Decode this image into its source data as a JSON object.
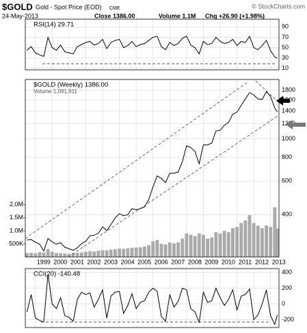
{
  "header": {
    "title": "$GOLD",
    "subtitle": "Gold - Spot Price (EOD)",
    "exchange": "CME",
    "source": "© StockCharts.com",
    "date": "24-May-2013",
    "close": "Close 1386.00",
    "volume": "Volume 1.1M",
    "change": "Chg +26.90 (+1.98%)"
  },
  "chart_data": [
    {
      "type": "line",
      "title": "RSI(14) 29.71",
      "color": "#000000",
      "grid": true,
      "x": [
        1998.5,
        1998.75,
        1999,
        1999.25,
        1999.5,
        1999.75,
        2000,
        2000.25,
        2000.5,
        2000.75,
        2001,
        2001.25,
        2001.5,
        2001.75,
        2002,
        2002.25,
        2002.5,
        2002.75,
        2003,
        2003.25,
        2003.5,
        2003.75,
        2004,
        2004.25,
        2004.5,
        2004.75,
        2005,
        2005.25,
        2005.5,
        2005.75,
        2006,
        2006.25,
        2006.5,
        2006.75,
        2007,
        2007.25,
        2007.5,
        2007.75,
        2008,
        2008.25,
        2008.5,
        2008.75,
        2009,
        2009.25,
        2009.5,
        2009.75,
        2010,
        2010.25,
        2010.5,
        2010.75,
        2011,
        2011.25,
        2011.5,
        2011.75,
        2012,
        2012.25,
        2012.5,
        2012.75,
        2013,
        2013.25,
        2013.4
      ],
      "values": [
        45,
        52,
        40,
        36,
        33,
        70,
        50,
        45,
        55,
        42,
        40,
        38,
        52,
        56,
        60,
        62,
        55,
        58,
        66,
        48,
        60,
        64,
        66,
        50,
        54,
        62,
        52,
        56,
        58,
        64,
        70,
        72,
        52,
        46,
        60,
        54,
        58,
        68,
        72,
        55,
        50,
        38,
        62,
        56,
        58,
        70,
        62,
        58,
        60,
        66,
        54,
        62,
        60,
        72,
        50,
        46,
        54,
        64,
        44,
        32,
        29.71
      ],
      "xlim": [
        1998.4,
        2013.5
      ],
      "ylim": [
        7,
        105
      ],
      "yticks": [
        10,
        30,
        50,
        70,
        90
      ]
    },
    {
      "type": "line",
      "title": "$GOLD (Weekly) 1386.00",
      "subtitle": "Volume 1,091,911",
      "log_scale": true,
      "grid": true,
      "x": [
        1998.5,
        1998.75,
        1999,
        1999.25,
        1999.5,
        1999.75,
        2000,
        2000.25,
        2000.5,
        2000.75,
        2001,
        2001.25,
        2001.5,
        2001.75,
        2002,
        2002.25,
        2002.5,
        2002.75,
        2003,
        2003.25,
        2003.5,
        2003.75,
        2004,
        2004.25,
        2004.5,
        2004.75,
        2005,
        2005.25,
        2005.5,
        2005.75,
        2006,
        2006.25,
        2006.5,
        2006.75,
        2007,
        2007.25,
        2007.5,
        2007.75,
        2008,
        2008.25,
        2008.5,
        2008.75,
        2009,
        2009.25,
        2009.5,
        2009.75,
        2010,
        2010.25,
        2010.5,
        2010.75,
        2011,
        2011.25,
        2011.5,
        2011.75,
        2012,
        2012.25,
        2012.5,
        2012.75,
        2013,
        2013.25,
        2013.4
      ],
      "series": [
        {
          "type": "bar",
          "axis": "y2",
          "color": "#aaaaaa",
          "values": [
            150000,
            160000,
            140000,
            180000,
            170000,
            300000,
            200000,
            150000,
            140000,
            130000,
            120000,
            150000,
            160000,
            170000,
            200000,
            220000,
            210000,
            240000,
            260000,
            250000,
            280000,
            300000,
            320000,
            310000,
            330000,
            350000,
            360000,
            370000,
            400000,
            450000,
            600000,
            650000,
            500000,
            480000,
            550000,
            520000,
            560000,
            700000,
            900000,
            850000,
            800000,
            900000,
            850000,
            700000,
            750000,
            950000,
            900000,
            1000000,
            950000,
            1100000,
            1150000,
            1300000,
            1400000,
            1600000,
            1300000,
            1200000,
            1100000,
            1200000,
            1150000,
            1900000,
            1091911
          ]
        },
        {
          "type": "line",
          "color": "#000000",
          "values": [
            295,
            296,
            287,
            280,
            258,
            300,
            288,
            280,
            285,
            270,
            265,
            260,
            268,
            282,
            290,
            310,
            312,
            320,
            345,
            330,
            355,
            385,
            405,
            395,
            400,
            430,
            425,
            430,
            440,
            480,
            560,
            640,
            620,
            590,
            660,
            660,
            670,
            760,
            920,
            900,
            860,
            740,
            930,
            930,
            950,
            1100,
            1110,
            1180,
            1220,
            1350,
            1380,
            1500,
            1620,
            1750,
            1700,
            1620,
            1610,
            1770,
            1670,
            1450,
            1386
          ]
        }
      ],
      "xlim": [
        1998.4,
        2013.5
      ],
      "xticks": [
        1999,
        2000,
        2001,
        2002,
        2003,
        2004,
        2005,
        2006,
        2007,
        2008,
        2009,
        2010,
        2011,
        2012,
        2013
      ],
      "ylim": [
        240,
        2050
      ],
      "yticks": [
        400,
        600,
        800,
        1000,
        1200,
        1400,
        1600,
        1800
      ],
      "y2lim": [
        0,
        6800000
      ],
      "y2ticks": [
        {
          "value": 500000,
          "label": "500K"
        },
        {
          "value": 1000000,
          "label": "1.0M"
        },
        {
          "value": 1500000,
          "label": "1.5M"
        },
        {
          "value": 2000000,
          "label": "2.0M"
        }
      ]
    },
    {
      "type": "line",
      "title": "CCI(20) -140.48",
      "color": "#000000",
      "grid": true,
      "x": [
        1998.5,
        1998.75,
        1999,
        1999.25,
        1999.5,
        1999.75,
        2000,
        2000.25,
        2000.5,
        2000.75,
        2001,
        2001.25,
        2001.5,
        2001.75,
        2002,
        2002.25,
        2002.5,
        2002.75,
        2003,
        2003.25,
        2003.5,
        2003.75,
        2004,
        2004.25,
        2004.5,
        2004.75,
        2005,
        2005.25,
        2005.5,
        2005.75,
        2006,
        2006.25,
        2006.5,
        2006.75,
        2007,
        2007.25,
        2007.5,
        2007.75,
        2008,
        2008.25,
        2008.5,
        2008.75,
        2009,
        2009.25,
        2009.5,
        2009.75,
        2010,
        2010.25,
        2010.5,
        2010.75,
        2011,
        2011.25,
        2011.5,
        2011.75,
        2012,
        2012.25,
        2012.5,
        2012.75,
        2013,
        2013.25,
        2013.4
      ],
      "values": [
        -100,
        120,
        -180,
        -210,
        -230,
        380,
        0,
        -60,
        80,
        -150,
        -170,
        -220,
        60,
        150,
        120,
        140,
        -40,
        60,
        180,
        -180,
        100,
        150,
        160,
        -120,
        -20,
        130,
        -60,
        20,
        40,
        150,
        200,
        160,
        -160,
        -220,
        120,
        -40,
        30,
        200,
        180,
        -60,
        -100,
        -240,
        150,
        20,
        40,
        200,
        80,
        -20,
        60,
        180,
        -80,
        100,
        120,
        190,
        -200,
        -140,
        0,
        180,
        -150,
        -260,
        -140.48
      ],
      "xlim": [
        1998.4,
        2013.5
      ],
      "ylim": [
        -300,
        450
      ],
      "yticks": [
        -200,
        0,
        200,
        400
      ]
    }
  ]
}
